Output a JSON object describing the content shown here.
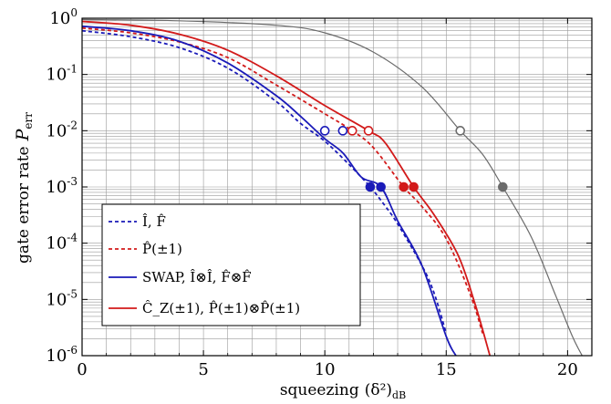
{
  "chart_data": {
    "type": "line",
    "xlabel": "squeezing",
    "xlabel_math": "(δ²)",
    "xlabel_sub": "dB",
    "ylabel": "gate error rate",
    "ylabel_symbol": "P",
    "ylabel_sub": "err",
    "xlim": [
      0,
      21
    ],
    "ylim": [
      1e-06,
      1
    ],
    "yscale": "log",
    "grid": true,
    "legend_position": "bottom-left",
    "x_ticks": [
      0,
      5,
      10,
      15,
      20
    ],
    "x_tick_labels": [
      "0",
      "5",
      "10",
      "15",
      "20"
    ],
    "x_minor_ticks": [
      1,
      2,
      3,
      4,
      6,
      7,
      8,
      9,
      11,
      12,
      13,
      14,
      16,
      17,
      18,
      19
    ],
    "y_ticks": [
      1e-06,
      1e-05,
      0.0001,
      0.001,
      0.01,
      0.1,
      1
    ],
    "y_tick_labels": [
      {
        "base": "10",
        "exp": "-6"
      },
      {
        "base": "10",
        "exp": "-5"
      },
      {
        "base": "10",
        "exp": "-4"
      },
      {
        "base": "10",
        "exp": "-3"
      },
      {
        "base": "10",
        "exp": "-2"
      },
      {
        "base": "10",
        "exp": "-1"
      },
      {
        "base": "10",
        "exp": "0"
      }
    ],
    "series": [
      {
        "name": "Î, F̂",
        "color": "#1a1ab8",
        "dash": true,
        "x": [
          0,
          2,
          4,
          6,
          8,
          9,
          10,
          11,
          11.87,
          12.5,
          13,
          14,
          14.5,
          15
        ],
        "y": [
          0.6,
          0.47,
          0.3,
          0.13,
          0.033,
          0.0135,
          0.0065,
          0.0025,
          0.001,
          0.00045,
          0.00022,
          4e-05,
          1.3e-05,
          2.5e-06
        ]
      },
      {
        "name": "P̂(±1)",
        "color": "#d21a1a",
        "dash": true,
        "x": [
          0,
          2,
          4,
          6,
          8,
          10,
          11.13,
          12,
          13.25,
          14,
          15,
          16,
          16.5
        ],
        "y": [
          0.67,
          0.55,
          0.38,
          0.2,
          0.065,
          0.02,
          0.01,
          0.005,
          0.001,
          0.00045,
          0.00012,
          1.2e-05,
          2.5e-06
        ]
      },
      {
        "name": "SWAP, Î⊗Î, F̂⊗F̂",
        "color": "#1a1ab8",
        "dash": false,
        "x": [
          0,
          2,
          4,
          6,
          8,
          9,
          10,
          10.75,
          11.5,
          12.31,
          13,
          14,
          15,
          15.4
        ],
        "y": [
          0.72,
          0.6,
          0.39,
          0.16,
          0.042,
          0.018,
          0.0072,
          0.004,
          0.0015,
          0.001,
          0.00025,
          4e-05,
          2.2e-06,
          1e-06
        ]
      },
      {
        "name": "Ĉ_Z(±1), P̂(±1)⊗P̂(±1)",
        "color": "#d21a1a",
        "dash": false,
        "x": [
          0,
          2,
          4,
          6,
          8,
          10,
          11.8,
          12.5,
          13.66,
          14.5,
          15.5,
          16.2,
          16.8
        ],
        "y": [
          0.88,
          0.75,
          0.52,
          0.27,
          0.095,
          0.028,
          0.01,
          0.006,
          0.001,
          0.00032,
          6e-05,
          8e-06,
          1e-06
        ]
      },
      {
        "name": "",
        "color": "#6b6b6b",
        "dash": false,
        "x": [
          0,
          4,
          8,
          10,
          12,
          14,
          15.58,
          16.5,
          17.33,
          18.5,
          19.5,
          20.2,
          20.6
        ],
        "y": [
          0.95,
          0.9,
          0.75,
          0.55,
          0.25,
          0.06,
          0.01,
          0.0038,
          0.001,
          0.00013,
          1.2e-05,
          2.2e-06,
          1e-06
        ]
      }
    ],
    "markers": [
      {
        "x": 10.0,
        "y": 0.01,
        "color": "#1a1ab8",
        "filled": false
      },
      {
        "x": 10.74,
        "y": 0.01,
        "color": "#1a1ab8",
        "filled": false
      },
      {
        "x": 11.13,
        "y": 0.01,
        "color": "#d21a1a",
        "filled": false
      },
      {
        "x": 11.8,
        "y": 0.01,
        "color": "#d21a1a",
        "filled": false
      },
      {
        "x": 15.58,
        "y": 0.01,
        "color": "#6b6b6b",
        "filled": false
      },
      {
        "x": 11.87,
        "y": 0.001,
        "color": "#1a1ab8",
        "filled": true
      },
      {
        "x": 12.31,
        "y": 0.001,
        "color": "#1a1ab8",
        "filled": true
      },
      {
        "x": 13.25,
        "y": 0.001,
        "color": "#d21a1a",
        "filled": true
      },
      {
        "x": 13.66,
        "y": 0.001,
        "color": "#d21a1a",
        "filled": true
      },
      {
        "x": 17.33,
        "y": 0.001,
        "color": "#6b6b6b",
        "filled": true
      }
    ]
  }
}
